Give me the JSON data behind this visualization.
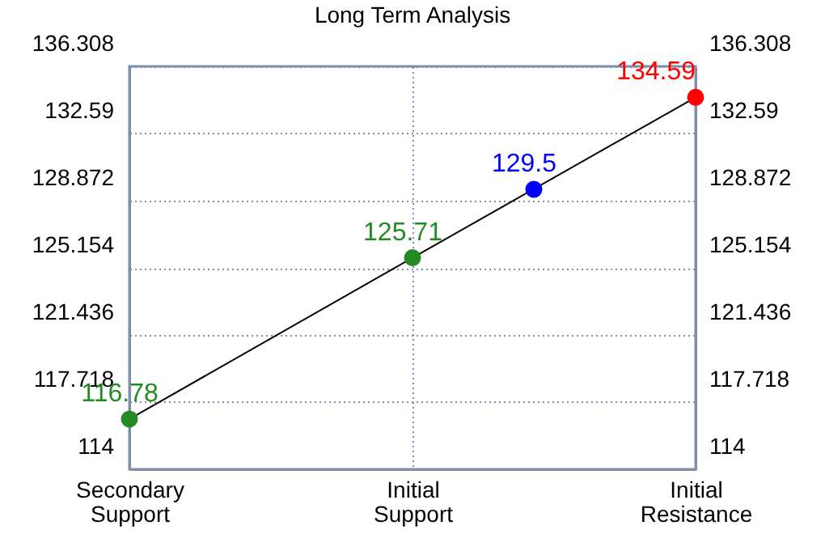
{
  "chart_data": {
    "type": "line",
    "title": "Long Term Analysis",
    "categories": [
      "Secondary Support",
      null,
      null,
      null,
      null,
      null,
      null,
      "Initial Support",
      null,
      null,
      null,
      null,
      null,
      null,
      "Initial Resistance"
    ],
    "ylim": [
      114,
      136.308
    ],
    "yticks": [
      114,
      117.718,
      121.436,
      125.154,
      128.872,
      132.59,
      136.308
    ],
    "y2lim": [
      114,
      136.308
    ],
    "y2ticks": [
      114,
      117.718,
      121.436,
      125.154,
      128.872,
      132.59,
      136.308
    ],
    "grid": true,
    "series": [
      {
        "type": "line",
        "values": [
          116.78,
          null,
          null,
          null,
          null,
          null,
          null,
          125.71,
          null,
          null,
          null,
          null,
          null,
          null,
          134.59
        ],
        "color": "#000000",
        "marker": "none"
      },
      {
        "type": "scatter",
        "values": [
          116.78,
          null,
          null,
          null,
          null,
          null,
          null,
          125.71,
          null,
          null,
          129.5,
          null,
          null,
          null,
          134.59
        ],
        "colors": [
          "#228b22",
          null,
          null,
          null,
          null,
          null,
          null,
          "#228b22",
          null,
          null,
          "#0000ff",
          null,
          null,
          null,
          "#ff0000"
        ],
        "value_labels": [
          "116.78",
          null,
          null,
          null,
          null,
          null,
          null,
          "125.71",
          null,
          null,
          "129.5",
          null,
          null,
          null,
          "134.59"
        ],
        "marker": "circle"
      }
    ]
  }
}
